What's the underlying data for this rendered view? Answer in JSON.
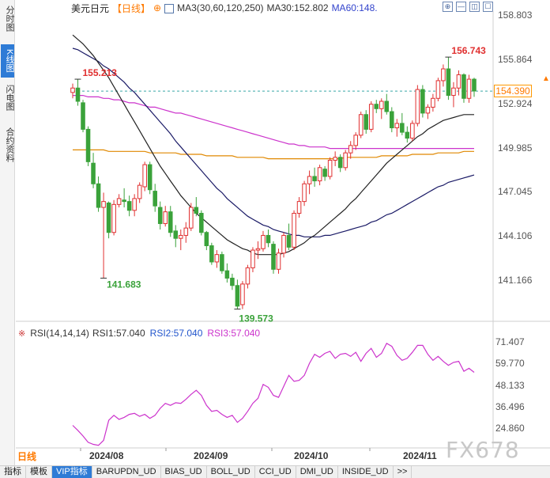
{
  "side_tabs": [
    {
      "label": "分时图",
      "active": false
    },
    {
      "label": "K线图",
      "active": true
    },
    {
      "label": "闪电图",
      "active": false
    },
    {
      "label": "合约资料",
      "active": false
    }
  ],
  "header": {
    "title": "美元日元",
    "period": "【日线】",
    "gear": "⊕",
    "ma_label": "MA3(30,60,120,250)",
    "ma30": "MA30:152.802",
    "ma60": "MA60:148."
  },
  "toolbar": [
    "⊕",
    "—",
    "◫",
    "☐"
  ],
  "price_axis": {
    "labels": [
      "158.803",
      "155.864",
      "152.924",
      "149.985",
      "147.045",
      "144.106",
      "141.166"
    ],
    "current": "154.390"
  },
  "annotations": {
    "high_right": "156.743",
    "high_left": "155.213",
    "low_left": "141.683",
    "low_mid": "139.573"
  },
  "rsi": {
    "icon": "※",
    "name": "RSI(14,14,14)",
    "rsi1": "RSI1:57.040",
    "rsi2": "RSI2:57.040",
    "rsi3": "RSI3:57.040",
    "axis_labels": [
      "71.407",
      "59.770",
      "48.133",
      "36.496",
      "24.860"
    ]
  },
  "date_axis": {
    "period_button": "日线",
    "labels": [
      "2024/08",
      "2024/09",
      "2024/10",
      "2024/11"
    ]
  },
  "watermark": "FX678",
  "bottom_tabs": [
    {
      "label": "指标",
      "active": false
    },
    {
      "label": "模板",
      "active": false
    },
    {
      "label": "VIP指标",
      "active": true
    },
    {
      "label": "BARUPDN_UD",
      "active": false
    },
    {
      "label": "BIAS_UD",
      "active": false
    },
    {
      "label": "BOLL_UD",
      "active": false
    },
    {
      "label": "CCI_UD",
      "active": false
    },
    {
      "label": "DMI_UD",
      "active": false
    },
    {
      "label": "INSIDE_UD",
      "active": false
    },
    {
      "label": ">>",
      "active": false
    }
  ],
  "colors": {
    "up": "#e03030",
    "down": "#3aa23a",
    "ma3": "#222222",
    "ma30": "#1a1a66",
    "ma60": "#cc33cc",
    "ma120": "#e08800",
    "rsi": "#cc33cc",
    "accent": "#2e7bd6"
  },
  "chart_data": {
    "type": "candlestick",
    "price_range": [
      139.2,
      159.5
    ],
    "candles": [
      [
        154.3,
        154.9,
        153.9,
        154.6
      ],
      [
        154.6,
        155.2,
        153.4,
        153.7
      ],
      [
        153.6,
        153.8,
        151.6,
        151.8
      ],
      [
        151.8,
        152.0,
        149.3,
        149.6
      ],
      [
        149.5,
        150.2,
        147.8,
        148.1
      ],
      [
        148.1,
        148.6,
        146.2,
        146.5
      ],
      [
        146.5,
        147.5,
        141.7,
        146.9
      ],
      [
        146.8,
        146.9,
        144.4,
        144.8
      ],
      [
        144.8,
        147.0,
        144.6,
        146.7
      ],
      [
        146.7,
        147.4,
        146.5,
        147.1
      ],
      [
        147.0,
        147.8,
        146.5,
        146.9
      ],
      [
        146.9,
        147.3,
        145.9,
        146.3
      ],
      [
        146.3,
        147.4,
        145.9,
        147.1
      ],
      [
        147.1,
        148.2,
        146.8,
        148.0
      ],
      [
        147.9,
        149.6,
        147.6,
        149.4
      ],
      [
        149.4,
        149.6,
        147.4,
        147.7
      ],
      [
        147.6,
        148.1,
        146.2,
        146.6
      ],
      [
        146.5,
        146.9,
        145.0,
        145.4
      ],
      [
        145.4,
        146.6,
        145.2,
        146.2
      ],
      [
        146.2,
        146.6,
        144.5,
        144.8
      ],
      [
        144.9,
        145.3,
        143.8,
        144.4
      ],
      [
        144.4,
        145.0,
        143.6,
        144.6
      ],
      [
        144.6,
        145.5,
        144.1,
        145.1
      ],
      [
        145.1,
        146.8,
        144.9,
        146.5
      ],
      [
        146.5,
        147.2,
        145.9,
        146.1
      ],
      [
        146.1,
        146.3,
        144.6,
        144.8
      ],
      [
        144.8,
        144.9,
        143.6,
        143.9
      ],
      [
        143.9,
        144.1,
        142.6,
        142.8
      ],
      [
        142.8,
        143.6,
        142.4,
        143.3
      ],
      [
        143.3,
        143.5,
        142.0,
        142.2
      ],
      [
        142.2,
        142.7,
        141.4,
        141.7
      ],
      [
        141.7,
        142.0,
        140.9,
        141.2
      ],
      [
        141.2,
        141.6,
        139.6,
        139.8
      ],
      [
        139.9,
        141.5,
        139.6,
        141.3
      ],
      [
        141.3,
        142.6,
        141.0,
        142.4
      ],
      [
        142.4,
        143.8,
        142.1,
        143.6
      ],
      [
        143.6,
        144.2,
        143.0,
        143.7
      ],
      [
        143.7,
        144.9,
        143.5,
        144.6
      ],
      [
        144.6,
        145.0,
        143.8,
        144.1
      ],
      [
        144.0,
        144.2,
        142.0,
        142.3
      ],
      [
        142.3,
        143.7,
        142.0,
        143.4
      ],
      [
        143.4,
        144.8,
        143.1,
        144.6
      ],
      [
        144.6,
        145.4,
        143.6,
        143.8
      ],
      [
        143.8,
        146.3,
        143.6,
        146.1
      ],
      [
        146.1,
        147.2,
        145.8,
        146.9
      ],
      [
        146.9,
        148.3,
        146.6,
        148.1
      ],
      [
        148.1,
        149.0,
        147.4,
        148.6
      ],
      [
        148.6,
        149.2,
        147.9,
        148.3
      ],
      [
        148.3,
        149.4,
        148.0,
        149.2
      ],
      [
        149.1,
        149.3,
        148.3,
        148.6
      ],
      [
        148.6,
        149.9,
        148.4,
        149.7
      ],
      [
        149.7,
        150.3,
        149.3,
        149.9
      ],
      [
        149.9,
        150.1,
        148.9,
        149.2
      ],
      [
        149.2,
        150.4,
        149.0,
        150.2
      ],
      [
        150.2,
        151.0,
        149.8,
        150.7
      ],
      [
        150.7,
        151.6,
        150.4,
        151.4
      ],
      [
        151.4,
        153.0,
        151.2,
        152.8
      ],
      [
        152.8,
        153.1,
        151.5,
        151.8
      ],
      [
        151.8,
        153.7,
        151.6,
        153.5
      ],
      [
        153.5,
        153.8,
        152.9,
        153.2
      ],
      [
        153.2,
        153.9,
        152.5,
        153.7
      ],
      [
        153.7,
        154.2,
        152.8,
        153.0
      ],
      [
        153.0,
        153.3,
        151.6,
        151.9
      ],
      [
        151.9,
        152.5,
        151.3,
        152.2
      ],
      [
        152.2,
        152.9,
        151.4,
        151.6
      ],
      [
        151.6,
        152.0,
        150.9,
        151.2
      ],
      [
        151.2,
        152.4,
        151.0,
        152.2
      ],
      [
        152.2,
        154.8,
        152.0,
        154.5
      ],
      [
        154.5,
        154.8,
        152.6,
        152.9
      ],
      [
        152.9,
        153.5,
        152.5,
        153.3
      ],
      [
        153.3,
        154.2,
        153.0,
        153.9
      ],
      [
        153.9,
        155.3,
        153.7,
        155.1
      ],
      [
        155.1,
        156.2,
        154.7,
        155.9
      ],
      [
        155.9,
        156.7,
        153.8,
        154.1
      ],
      [
        154.1,
        155.0,
        153.3,
        154.6
      ],
      [
        154.6,
        155.8,
        154.1,
        155.5
      ],
      [
        155.5,
        155.6,
        153.6,
        153.9
      ],
      [
        153.9,
        155.5,
        153.6,
        155.2
      ],
      [
        155.2,
        155.3,
        154.0,
        154.4
      ]
    ],
    "ma3": [
      154.4,
      154.2,
      153.4,
      151.7,
      149.8,
      148.1,
      147.2,
      146.1,
      145.9,
      146.2,
      147.0,
      146.8,
      146.8,
      147.2,
      148.2,
      148.4,
      147.9,
      146.6,
      146.1,
      145.5,
      145.1,
      144.6,
      144.7,
      145.4,
      145.9,
      145.8,
      145.0,
      143.8,
      143.3,
      142.8,
      142.4,
      141.7,
      140.9,
      140.8,
      141.1,
      142.4,
      143.2,
      143.9,
      144.1,
      143.7,
      143.3,
      143.4,
      143.9,
      144.8,
      145.6,
      147.0,
      147.9,
      148.3,
      148.7,
      148.7,
      149.2,
      149.4,
      149.6,
      149.8,
      150.1,
      150.8,
      151.6,
      152.0,
      152.7,
      152.8,
      153.5,
      153.3,
      152.9,
      152.4,
      151.9,
      151.7,
      151.7,
      152.6,
      153.2,
      153.6,
      153.4,
      154.1,
      155.0,
      155.0,
      154.9,
      154.7,
      154.7,
      154.9,
      154.5
    ],
    "ma30": [
      158.2,
      157.9,
      157.6,
      157.2,
      156.8,
      156.3,
      155.8,
      155.3,
      154.7,
      154.1,
      153.5,
      152.9,
      152.3,
      151.7,
      151.1,
      150.5,
      149.9,
      149.3,
      148.8,
      148.3,
      147.8,
      147.3,
      146.9,
      146.5,
      146.1,
      145.8,
      145.5,
      145.2,
      144.9,
      144.6,
      144.3,
      144.1,
      143.9,
      143.7,
      143.6,
      143.4,
      143.3,
      143.3,
      143.3,
      143.3,
      143.3,
      143.4,
      143.5,
      143.7,
      143.9,
      144.1,
      144.4,
      144.6,
      144.9,
      145.2,
      145.5,
      145.8,
      146.1,
      146.4,
      146.8,
      147.1,
      147.5,
      147.9,
      148.3,
      148.7,
      149.1,
      149.5,
      149.8,
      150.1,
      150.4,
      150.7,
      151.0,
      151.3,
      151.5,
      151.8,
      152.0,
      152.2,
      152.4,
      152.5,
      152.6,
      152.7,
      152.8,
      152.8,
      152.8
    ],
    "ma60": [
      157.3,
      157.2,
      157.0,
      156.8,
      156.6,
      156.4,
      156.1,
      155.9,
      155.6,
      155.3,
      155.0,
      154.6,
      154.3,
      153.9,
      153.5,
      153.1,
      152.7,
      152.3,
      151.9,
      151.5,
      151.0,
      150.6,
      150.2,
      149.8,
      149.4,
      149.0,
      148.6,
      148.2,
      147.8,
      147.5,
      147.1,
      146.8,
      146.5,
      146.2,
      145.9,
      145.7,
      145.5,
      145.3,
      145.2,
      145.0,
      144.9,
      144.8,
      144.7,
      144.6,
      144.6,
      144.5,
      144.5,
      144.5,
      144.5,
      144.6,
      144.6,
      144.7,
      144.8,
      144.9,
      145.0,
      145.1,
      145.2,
      145.3,
      145.5,
      145.6,
      145.8,
      146.0,
      146.1,
      146.3,
      146.5,
      146.7,
      146.9,
      147.1,
      147.3,
      147.5,
      147.7,
      147.9,
      148.0,
      148.2,
      148.3,
      148.4,
      148.5,
      148.6,
      148.7
    ],
    "ma120": [
      154.1,
      154.1,
      154.1,
      154.0,
      154.0,
      154.0,
      153.9,
      153.9,
      153.8,
      153.8,
      153.7,
      153.6,
      153.6,
      153.5,
      153.4,
      153.3,
      153.3,
      153.2,
      153.1,
      153.0,
      152.9,
      152.9,
      152.8,
      152.7,
      152.6,
      152.5,
      152.4,
      152.3,
      152.2,
      152.1,
      152.0,
      151.9,
      151.8,
      151.7,
      151.6,
      151.5,
      151.4,
      151.3,
      151.2,
      151.1,
      151.0,
      150.9,
      150.8,
      150.8,
      150.7,
      150.7,
      150.6,
      150.6,
      150.6,
      150.6,
      150.5,
      150.5,
      150.5,
      150.5,
      150.5,
      150.5,
      150.5,
      150.5,
      150.5,
      150.5,
      150.5,
      150.5,
      150.5,
      150.5,
      150.5,
      150.5,
      150.5,
      150.5,
      150.5,
      150.5,
      150.5,
      150.5,
      150.5,
      150.5,
      150.5,
      150.5,
      150.5,
      150.5,
      150.5
    ],
    "ma250": [
      150.4,
      150.4,
      150.4,
      150.4,
      150.4,
      150.4,
      150.4,
      150.3,
      150.3,
      150.3,
      150.3,
      150.3,
      150.3,
      150.3,
      150.3,
      150.2,
      150.2,
      150.2,
      150.2,
      150.2,
      150.2,
      150.1,
      150.1,
      150.1,
      150.1,
      150.1,
      150.0,
      150.0,
      150.0,
      150.0,
      150.0,
      150.0,
      149.9,
      149.9,
      149.9,
      149.9,
      149.9,
      149.9,
      149.8,
      149.8,
      149.8,
      149.8,
      149.8,
      149.8,
      149.8,
      149.8,
      149.8,
      149.8,
      149.8,
      149.8,
      149.8,
      149.8,
      149.8,
      149.9,
      149.9,
      149.9,
      149.9,
      149.9,
      149.9,
      149.9,
      150.0,
      150.0,
      150.0,
      150.0,
      150.0,
      150.0,
      150.1,
      150.1,
      150.1,
      150.1,
      150.1,
      150.2,
      150.2,
      150.2,
      150.2,
      150.2,
      150.3,
      150.3,
      150.3
    ],
    "rsi_range": [
      20,
      75
    ],
    "rsi": [
      30.5,
      28.0,
      25.2,
      22.0,
      21.0,
      20.5,
      23.0,
      33.0,
      35.5,
      33.5,
      34.5,
      36.0,
      36.5,
      35.0,
      36.0,
      34.0,
      35.5,
      39.0,
      41.5,
      40.5,
      41.8,
      41.5,
      43.5,
      46.0,
      48.0,
      45.5,
      40.5,
      37.5,
      38.0,
      36.0,
      34.5,
      35.5,
      32.0,
      34.0,
      37.5,
      41.5,
      44.0,
      51.0,
      49.5,
      45.5,
      44.5,
      50.0,
      55.5,
      52.5,
      53.0,
      55.5,
      61.5,
      66.0,
      64.5,
      66.5,
      67.5,
      64.0,
      66.0,
      66.5,
      65.0,
      67.0,
      62.5,
      66.5,
      69.0,
      64.5,
      66.5,
      71.5,
      70.0,
      65.5,
      63.0,
      64.0,
      67.0,
      70.5,
      70.5,
      66.0,
      63.0,
      65.0,
      62.5,
      60.5,
      62.0,
      62.5,
      57.5,
      59.0,
      57.0
    ]
  }
}
